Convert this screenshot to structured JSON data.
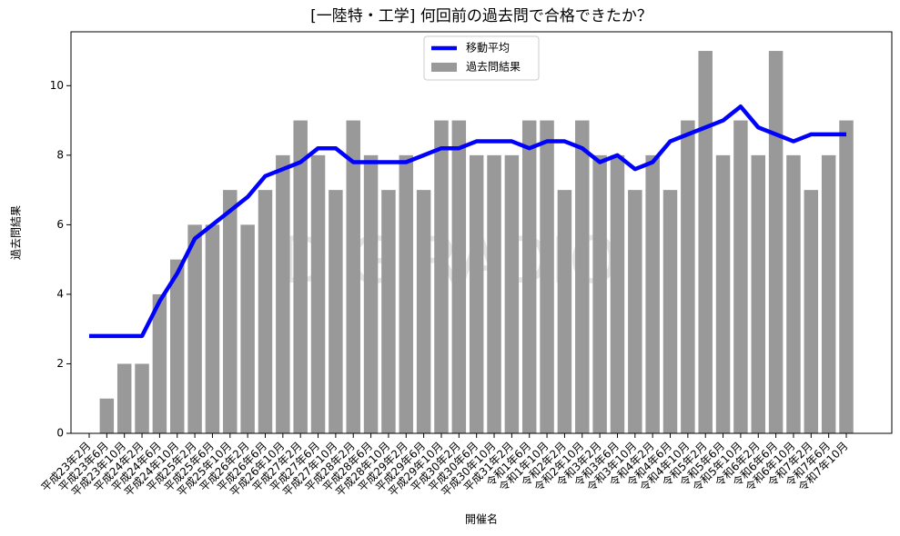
{
  "chart_data": {
    "type": "bar",
    "title": "[一陸特・工学] 何回前の過去問で合格できたか？",
    "watermark": "DIGIRADIO",
    "xlabel": "開催名",
    "ylabel": "過去問結果",
    "categories": [
      "平成23年2月",
      "平成23年6月",
      "平成23年10月",
      "平成24年2月",
      "平成24年6月",
      "平成24年10月",
      "平成25年2月",
      "平成25年6月",
      "平成25年10月",
      "平成26年2月",
      "平成26年6月",
      "平成26年10月",
      "平成27年2月",
      "平成27年6月",
      "平成27年10月",
      "平成28年2月",
      "平成28年6月",
      "平成28年10月",
      "平成29年2月",
      "平成29年6月",
      "平成29年10月",
      "平成30年2月",
      "平成30年6月",
      "平成30年10月",
      "平成31年2月",
      "令和1年6月",
      "令和1年10月",
      "令和2年2月",
      "令和2年10月",
      "令和3年2月",
      "令和3年6月",
      "令和3年10月",
      "令和4年2月",
      "令和4年6月",
      "令和4年10月",
      "令和5年2月",
      "令和5年6月",
      "令和5年10月",
      "令和6年2月",
      "令和6年6月",
      "令和6年10月",
      "令和7年2月",
      "令和7年6月",
      "令和7年10月"
    ],
    "series": [
      {
        "name": "移動平均",
        "type": "line",
        "color": "#0000ff",
        "values": [
          2.8,
          2.8,
          2.8,
          2.8,
          3.8,
          4.6,
          5.6,
          6.0,
          6.4,
          6.8,
          7.4,
          7.6,
          7.8,
          8.2,
          8.2,
          7.8,
          7.8,
          7.8,
          7.8,
          8.0,
          8.2,
          8.2,
          8.4,
          8.4,
          8.4,
          8.2,
          8.4,
          8.4,
          8.2,
          7.8,
          8.0,
          7.6,
          7.8,
          8.4,
          8.6,
          8.8,
          9.0,
          9.4,
          8.8,
          8.6,
          8.4,
          8.6,
          8.6,
          8.6
        ]
      },
      {
        "name": "過去問結果",
        "type": "bar",
        "color": "#999999",
        "values": [
          0,
          1,
          2,
          2,
          4,
          5,
          6,
          6,
          7,
          6,
          7,
          8,
          9,
          8,
          7,
          9,
          8,
          7,
          8,
          7,
          9,
          9,
          8,
          8,
          8,
          9,
          9,
          7,
          9,
          8,
          8,
          7,
          8,
          7,
          9,
          11,
          8,
          9,
          8,
          11,
          8,
          7,
          8,
          9
        ]
      }
    ],
    "ylim": [
      0,
      11.55
    ],
    "yticks": [
      0,
      2,
      4,
      6,
      8,
      10
    ],
    "legend": "upper center"
  }
}
